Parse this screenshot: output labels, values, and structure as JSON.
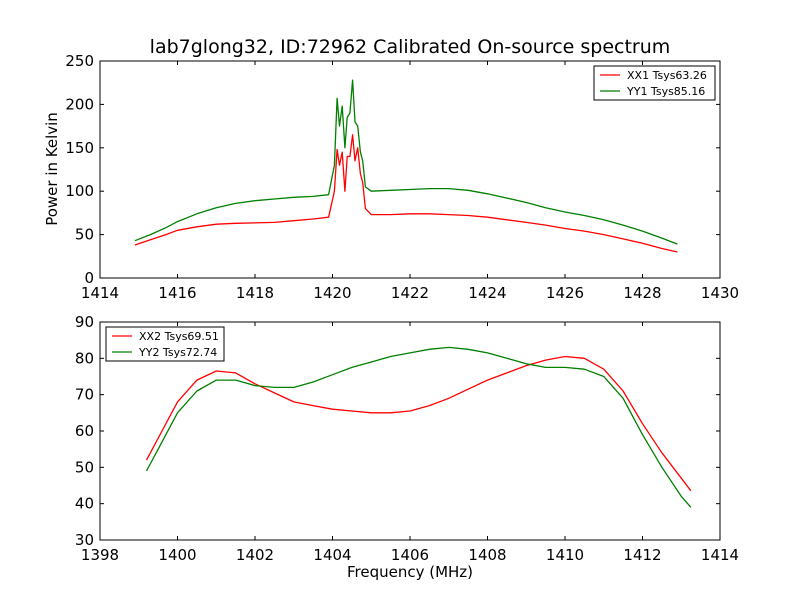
{
  "chart_data": [
    {
      "type": "line",
      "title": "lab7glong32, ID:72962 Calibrated On-source spectrum",
      "xlabel": "",
      "ylabel": "Power in Kelvin",
      "xlim": [
        1414,
        1430
      ],
      "ylim": [
        0,
        250
      ],
      "xticks": [
        "1414",
        "1416",
        "1418",
        "1420",
        "1422",
        "1424",
        "1426",
        "1428",
        "1430"
      ],
      "yticks": [
        "0",
        "50",
        "100",
        "150",
        "200",
        "250"
      ],
      "grid": false,
      "legend": "top-right",
      "series": [
        {
          "name": "XX1 Tsys63.26",
          "color": "#ff0000",
          "x": [
            1414.9,
            1415.3,
            1415.7,
            1416.0,
            1416.5,
            1417.0,
            1417.5,
            1418.0,
            1418.5,
            1419.0,
            1419.5,
            1419.9,
            1420.05,
            1420.12,
            1420.18,
            1420.25,
            1420.32,
            1420.38,
            1420.45,
            1420.52,
            1420.58,
            1420.65,
            1420.72,
            1420.78,
            1420.85,
            1421.0,
            1421.5,
            1422.0,
            1422.5,
            1423.0,
            1423.5,
            1424.0,
            1424.5,
            1425.0,
            1425.5,
            1426.0,
            1426.5,
            1427.0,
            1427.5,
            1428.0,
            1428.5,
            1428.9
          ],
          "y": [
            38,
            44,
            50,
            55,
            59,
            62,
            63,
            63.5,
            64,
            66,
            68,
            70,
            100,
            148,
            130,
            145,
            100,
            140,
            140,
            165,
            135,
            150,
            120,
            110,
            80,
            73,
            73,
            74,
            74,
            73,
            72,
            70,
            67,
            64,
            61,
            57,
            54,
            50,
            45,
            40,
            34,
            30
          ]
        },
        {
          "name": "YY1 Tsys85.16",
          "color": "#008000",
          "x": [
            1414.9,
            1415.3,
            1415.7,
            1416.0,
            1416.5,
            1417.0,
            1417.5,
            1418.0,
            1418.5,
            1419.0,
            1419.5,
            1419.9,
            1420.05,
            1420.12,
            1420.18,
            1420.25,
            1420.32,
            1420.38,
            1420.45,
            1420.52,
            1420.58,
            1420.65,
            1420.72,
            1420.78,
            1420.85,
            1421.0,
            1421.5,
            1422.0,
            1422.5,
            1423.0,
            1423.5,
            1424.0,
            1424.5,
            1425.0,
            1425.5,
            1426.0,
            1426.5,
            1427.0,
            1427.5,
            1428.0,
            1428.5,
            1428.9
          ],
          "y": [
            43,
            50,
            58,
            65,
            74,
            81,
            86,
            89,
            91,
            93,
            94,
            96,
            130,
            207,
            175,
            198,
            150,
            185,
            190,
            228,
            180,
            175,
            145,
            135,
            105,
            100,
            101,
            102,
            103,
            103,
            101,
            97,
            92,
            87,
            81,
            76,
            72,
            67,
            61,
            54,
            46,
            39
          ]
        }
      ]
    },
    {
      "type": "line",
      "title": "",
      "xlabel": "Frequency (MHz)",
      "ylabel": "",
      "xlim": [
        1398,
        1414
      ],
      "ylim": [
        30,
        90
      ],
      "xticks": [
        "1398",
        "1400",
        "1402",
        "1404",
        "1406",
        "1408",
        "1410",
        "1412",
        "1414"
      ],
      "yticks": [
        "30",
        "40",
        "50",
        "60",
        "70",
        "80",
        "90"
      ],
      "grid": false,
      "legend": "top-left",
      "series": [
        {
          "name": "XX2 Tsys69.51",
          "color": "#ff0000",
          "x": [
            1399.2,
            1399.6,
            1400.0,
            1400.5,
            1401.0,
            1401.5,
            1402.0,
            1402.5,
            1403.0,
            1403.5,
            1404.0,
            1404.5,
            1405.0,
            1405.5,
            1406.0,
            1406.5,
            1407.0,
            1407.5,
            1408.0,
            1408.5,
            1409.0,
            1409.5,
            1410.0,
            1410.5,
            1411.0,
            1411.5,
            1412.0,
            1412.5,
            1413.0,
            1413.25
          ],
          "y": [
            52,
            60,
            68,
            74,
            76.5,
            76,
            73,
            70.5,
            68,
            67,
            66,
            65.5,
            65,
            65,
            65.5,
            67,
            69,
            71.5,
            74,
            76,
            78,
            79.5,
            80.5,
            80,
            77,
            71,
            62,
            54,
            47,
            43.5
          ]
        },
        {
          "name": "YY2 Tsys72.74",
          "color": "#008000",
          "x": [
            1399.2,
            1399.6,
            1400.0,
            1400.5,
            1401.0,
            1401.5,
            1402.0,
            1402.5,
            1403.0,
            1403.5,
            1404.0,
            1404.5,
            1405.0,
            1405.5,
            1406.0,
            1406.5,
            1407.0,
            1407.5,
            1408.0,
            1408.5,
            1409.0,
            1409.5,
            1410.0,
            1410.5,
            1411.0,
            1411.5,
            1412.0,
            1412.5,
            1413.0,
            1413.25
          ],
          "y": [
            49,
            57,
            65,
            71,
            74,
            74,
            72.5,
            72,
            72,
            73.5,
            75.5,
            77.5,
            79,
            80.5,
            81.5,
            82.5,
            83,
            82.5,
            81.5,
            80,
            78.5,
            77.5,
            77.5,
            77,
            75,
            69,
            59,
            50,
            42,
            39
          ]
        }
      ]
    }
  ]
}
